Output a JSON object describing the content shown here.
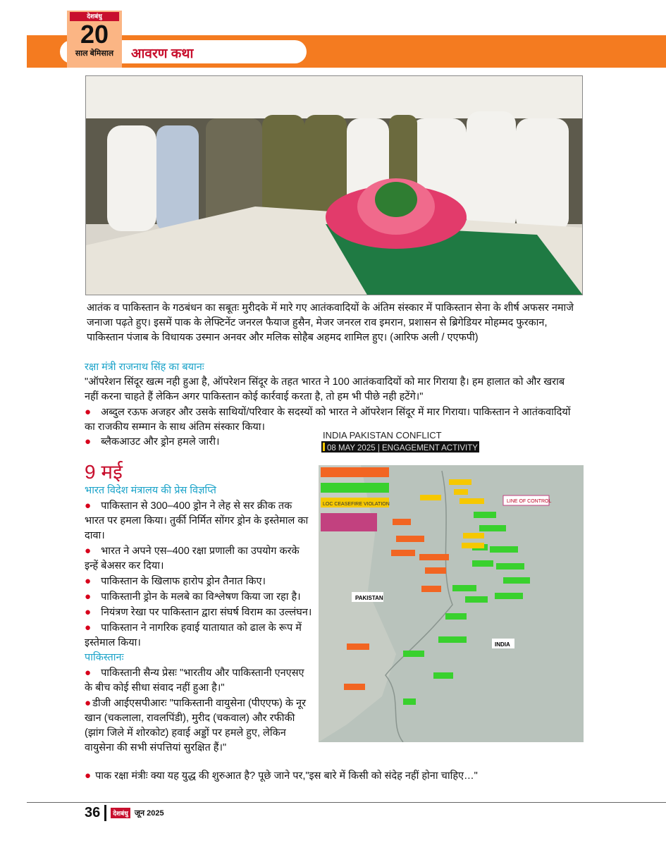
{
  "header": {
    "brand_logo": "देशबंधु",
    "anniversary_number": "20",
    "anniversary_text": "साल बेमिसाल",
    "section": "आवरण कथा",
    "accent": "#f47b20"
  },
  "photo": {
    "description_icon": "funeral-photo"
  },
  "caption": "आतंक व पाकिस्तान के गठबंधन का सबूतः मुरीदके में मारे गए आतंकवादियों के अंतिम संस्कार में पाकिस्तान सेना के शीर्ष अफसर नमाजे जनाजा पढ़ते हुए। इसमें पाक के लेफ्टिनेंट जनरल फैयाज हुसैन, मेजर जनरल राव इमरान, प्रशासन से ब्रिगेडियर मोहम्मद फुरकान, पाकिस्तान पंजाब के विधायक उस्मान अनवर और मलिक सोहैब अहमद शामिल हुए। (आरिफ अली / एएफपी)",
  "statement": {
    "heading": "रक्षा मंत्री राजनाथ सिंह का बयानः",
    "quote": "\"ऑपरेशन सिंदूर खत्म नही हुआ है, ऑपरेशन सिंदूर के तहत भारत ने 100 आतंकवादियों को मार गिराया है। हम हालात को और खराब नहीं करना चाहते हैं लेकिन अगर पाकिस्तान कोई कार्रवाई करता है, तो हम भी पीछे नही हटेंगे।\"",
    "bullets": [
      "अब्दुल रऊफ अजहर और उसके साथियों/परिवार के सदस्यों को भारत ने ऑपरेशन सिंदूर में मार गिराया। पाकिस्तान ने आतंकवादियों का राजकीय सम्मान के साथ अंतिम संस्कार किया।",
      "ब्लैकआउट और ड्रोन हमले जारी।"
    ]
  },
  "may9": {
    "date": "9 मई",
    "mea_heading": "भारत विदेश मंत्रालय की प्रेस विज्ञप्ति",
    "mea_bullets": [
      "पाकिस्तान से 300–400 ड्रोन ने लेह से सर क्रीक तक भारत पर हमला किया। तुर्की निर्मित सोंगर ड्रोन के इस्तेमाल का दावा।",
      "भारत ने अपने एस–400 रक्षा प्रणाली का उपयोग करके इन्हें बेअसर कर दिया।",
      "पाकिस्तान के खिलाफ हारोप ड्रोन तैनात किए।",
      "पाकिस्तानी ड्रोन के मलबे का विश्लेषण किया जा रहा है।",
      "नियंत्रण रेखा पर पाकिस्तान द्वारा संघर्ष विराम का उल्लंघन।",
      "पाकिस्तान ने नागरिक हवाई यातायात को ढाल के रूप में इस्तेमाल किया।"
    ],
    "pak_heading": "पाकिस्तानः",
    "pak_bullets": [
      "पाकिस्तानी सैन्य प्रेसः \"भारतीय और पाकिस्तानी एनएसए के बीच कोई सीधा संवाद नहीं हुआ है।\"",
      "डीजी आईएसपीआरः \"पाकिस्तानी वायुसेना (पीएएफ) के नूर खान (चकलाला, रावलपिंडी), मुरीद (चकवाल) और रफीकी (झांग जिले में शोरकोट) हवाई अड्डों पर हमले हुए, लेकिन वायुसेना की सभी संपत्तियां सुरक्षित हैं।\"",
      "पाक रक्षा मंत्रीः क्या यह युद्ध की शुरुआत है? पूछे जाने पर,\"इस बारे में किसी को संदेह नहीं होना चाहिए…\""
    ]
  },
  "map": {
    "title": "INDIA PAKISTAN CONFLICT",
    "subtitle": "08 MAY 2025 | ENGAGEMENT ACTIVITY",
    "legend": [
      "LOC CEASEFIRE VIOLATION"
    ],
    "labels": {
      "loc": "LINE OF CONTROL",
      "pakistan": "PAKISTAN",
      "india": "INDIA"
    },
    "colors": {
      "pak_attempt": "#f26522",
      "ind_attempt": "#39d12e",
      "loc": "#f6c800",
      "strike": "#c2417f"
    }
  },
  "footer": {
    "page": "36",
    "brand": "देशबंधु",
    "date": "जून 2025"
  }
}
